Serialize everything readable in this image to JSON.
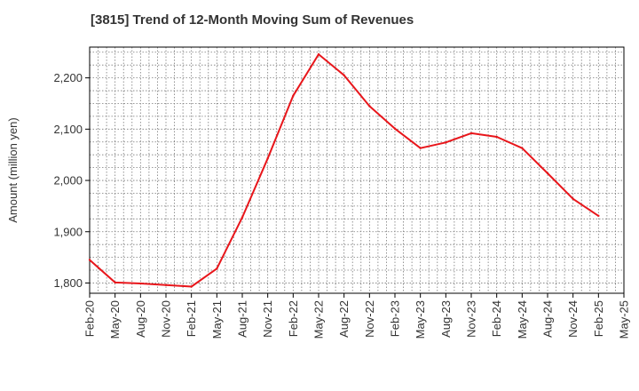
{
  "chart_data": {
    "type": "line",
    "title": "[3815]  Trend of 12-Month Moving Sum of Revenues",
    "xlabel": "",
    "ylabel": "Amount (million yen)",
    "categories": [
      "Feb-20",
      "May-20",
      "Aug-20",
      "Nov-20",
      "Feb-21",
      "May-21",
      "Aug-21",
      "Nov-21",
      "Feb-22",
      "May-22",
      "Aug-22",
      "Nov-22",
      "Feb-23",
      "May-23",
      "Aug-23",
      "Nov-23",
      "Feb-24",
      "May-24",
      "Aug-24",
      "Nov-24",
      "Feb-25",
      "May-25"
    ],
    "yticks": [
      1800,
      1900,
      2000,
      2100,
      2200
    ],
    "ytick_labels": [
      "1,800",
      "1,900",
      "2,000",
      "2,100",
      "2,200"
    ],
    "ylim": [
      1780,
      2260
    ],
    "grid": true,
    "series": [
      {
        "name": "",
        "color": "#e8161b",
        "values": [
          1845,
          1801,
          1799,
          1796,
          1793,
          1828,
          1928,
          2043,
          2165,
          2246,
          2205,
          2145,
          2101,
          2063,
          2074,
          2092,
          2085,
          2063,
          2014,
          1964,
          1931,
          null
        ]
      }
    ]
  }
}
